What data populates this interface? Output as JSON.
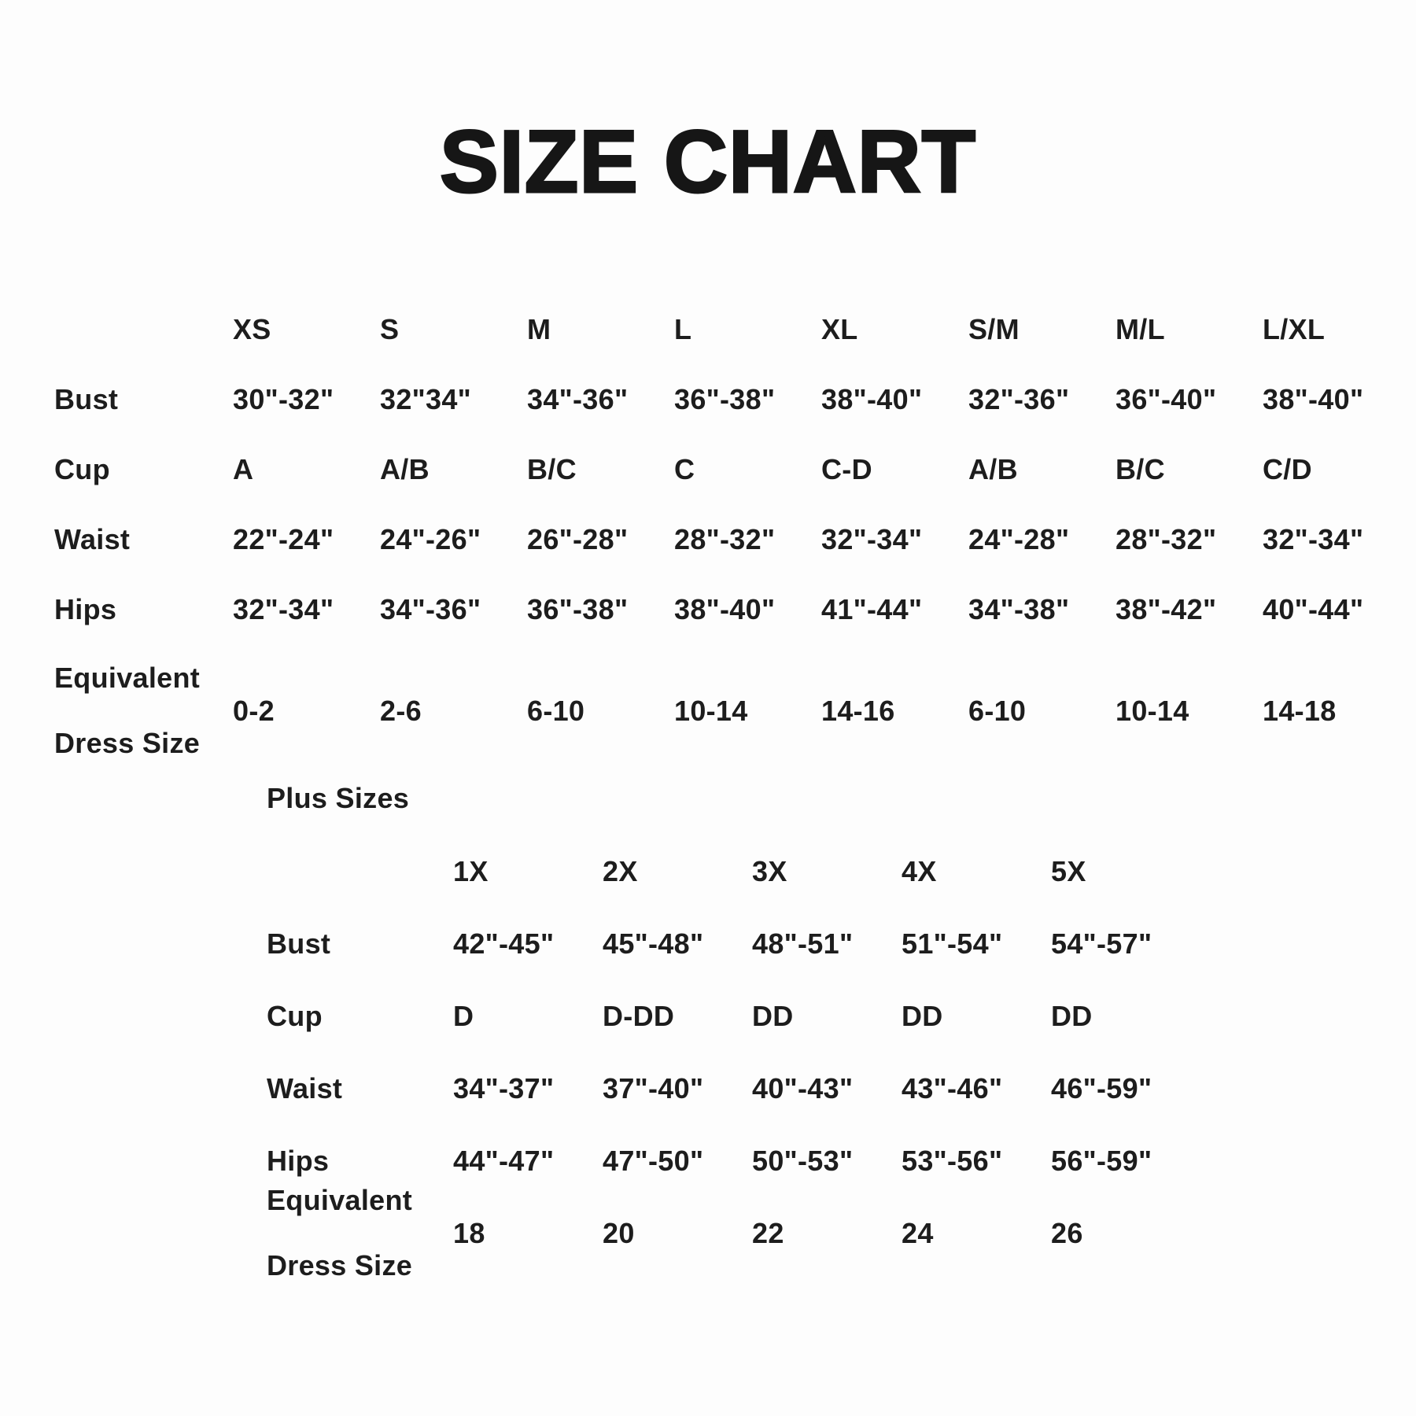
{
  "title": "SIZE CHART",
  "plus_heading": "Plus Sizes",
  "chart_data": [
    {
      "type": "table",
      "title": "SIZE CHART",
      "columns": [
        "XS",
        "S",
        "M",
        "L",
        "XL",
        "S/M",
        "M/L",
        "L/XL"
      ],
      "rows": [
        {
          "label": "Bust",
          "values": [
            "30\"-32\"",
            "32\"34\"",
            "34\"-36\"",
            "36\"-38\"",
            "38\"-40\"",
            "32\"-36\"",
            "36\"-40\"",
            "38\"-40\""
          ]
        },
        {
          "label": "Cup",
          "values": [
            "A",
            "A/B",
            "B/C",
            "C",
            "C-D",
            "A/B",
            "B/C",
            "C/D"
          ]
        },
        {
          "label": "Waist",
          "values": [
            "22\"-24\"",
            "24\"-26\"",
            "26\"-28\"",
            "28\"-32\"",
            "32\"-34\"",
            "24\"-28\"",
            "28\"-32\"",
            "32\"-34\""
          ]
        },
        {
          "label": "Hips",
          "values": [
            "32\"-34\"",
            "34\"-36\"",
            "36\"-38\"",
            "38\"-40\"",
            "41\"-44\"",
            "34\"-38\"",
            "38\"-42\"",
            "40\"-44\""
          ]
        },
        {
          "label": "Equivalent Dress Size",
          "values": [
            "0-2",
            "2-6",
            "6-10",
            "10-14",
            "14-16",
            "6-10",
            "10-14",
            "14-18"
          ]
        }
      ]
    },
    {
      "type": "table",
      "title": "Plus Sizes",
      "columns": [
        "1X",
        "2X",
        "3X",
        "4X",
        "5X"
      ],
      "rows": [
        {
          "label": "Bust",
          "values": [
            "42\"-45\"",
            "45\"-48\"",
            "48\"-51\"",
            "51\"-54\"",
            "54\"-57\""
          ]
        },
        {
          "label": "Cup",
          "values": [
            "D",
            "D-DD",
            "DD",
            "DD",
            "DD"
          ]
        },
        {
          "label": "Waist",
          "values": [
            "34\"-37\"",
            "37\"-40\"",
            "40\"-43\"",
            "43\"-46\"",
            "46\"-59\""
          ]
        },
        {
          "label": "Hips",
          "values": [
            "44\"-47\"",
            "47\"-50\"",
            "50\"-53\"",
            "53\"-56\"",
            "56\"-59\""
          ]
        },
        {
          "label": "Equivalent Dress Size",
          "values": [
            "18",
            "20",
            "22",
            "24",
            "26"
          ]
        }
      ]
    }
  ],
  "colors": {
    "text": "#1d1d1d",
    "title": "#161616",
    "background": "#fdfdfd"
  }
}
